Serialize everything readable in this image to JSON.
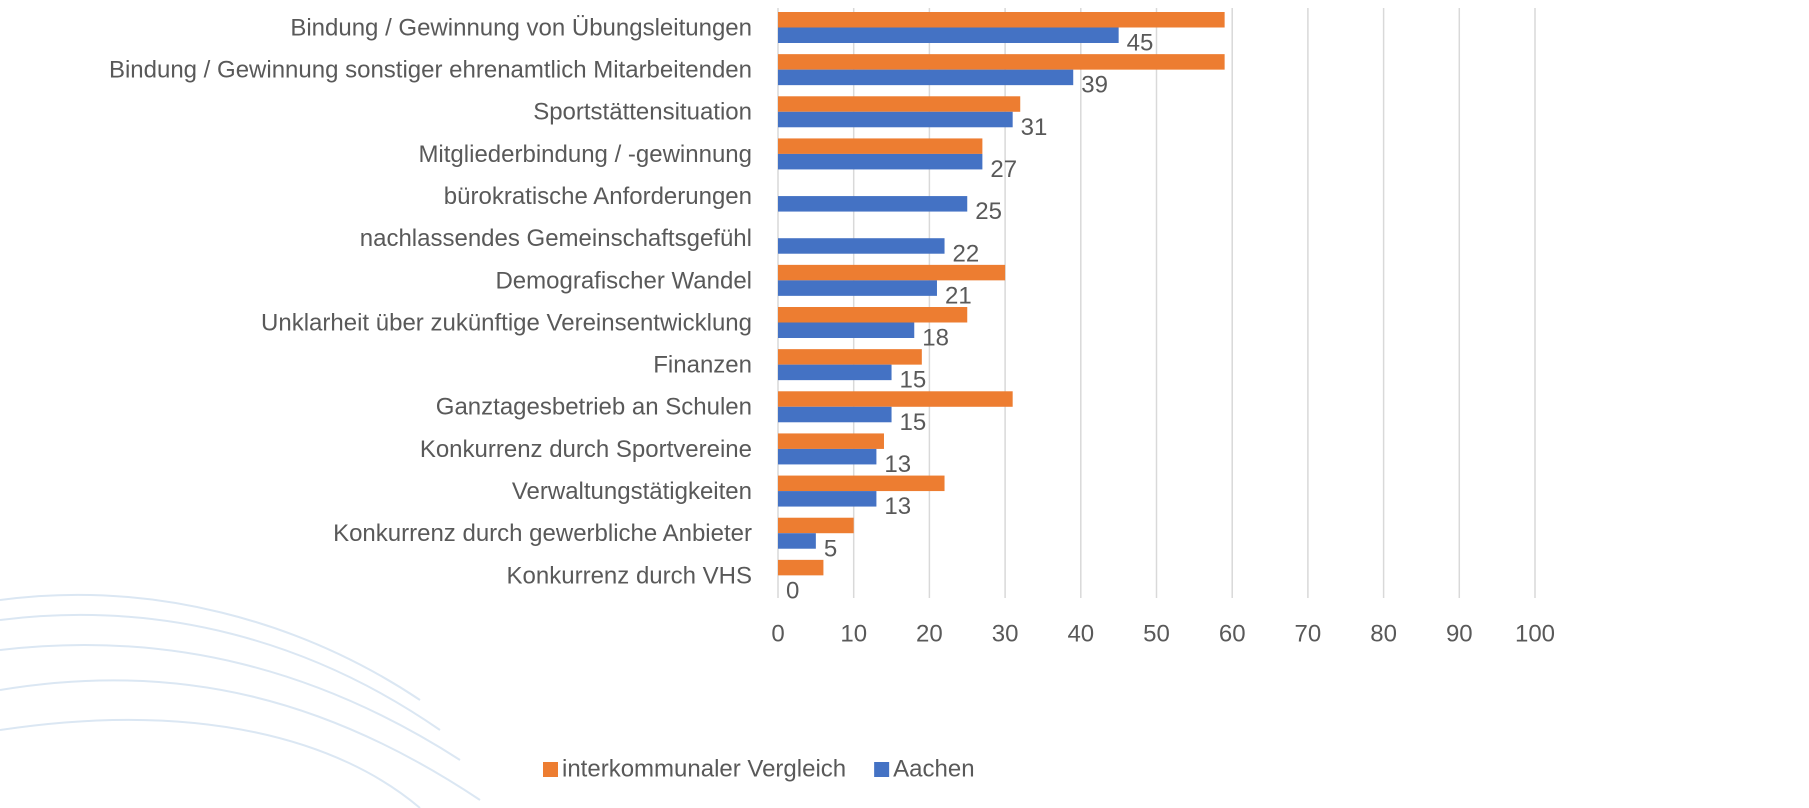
{
  "chart_data": {
    "type": "bar",
    "orientation": "horizontal",
    "categories": [
      "Bindung / Gewinnung von Übungsleitungen",
      "Bindung / Gewinnung sonstiger ehrenamtlich Mitarbeitenden",
      "Sportstättensituation",
      "Mitgliederbindung / -gewinnung",
      "bürokratische Anforderungen",
      "nachlassendes Gemeinschaftsgefühl",
      "Demografischer Wandel",
      "Unklarheit über zukünftige Vereinsentwicklung",
      "Finanzen",
      "Ganztagesbetrieb an Schulen",
      "Konkurrenz durch Sportvereine",
      "Verwaltungstätigkeiten",
      "Konkurrenz durch gewerbliche Anbieter",
      "Konkurrenz durch VHS"
    ],
    "series": [
      {
        "name": "interkommunaler Vergleich",
        "color": "#ed7d31",
        "values": [
          59,
          59,
          32,
          27,
          null,
          null,
          30,
          25,
          19,
          31,
          14,
          22,
          10,
          6
        ]
      },
      {
        "name": "Aachen",
        "color": "#4472c4",
        "values": [
          45,
          39,
          31,
          27,
          25,
          22,
          21,
          18,
          15,
          15,
          13,
          13,
          5,
          0
        ],
        "data_labels": true
      }
    ],
    "xlim": [
      0,
      100
    ],
    "xticks": [
      0,
      10,
      20,
      30,
      40,
      50,
      60,
      70,
      80,
      90,
      100
    ],
    "grid": true,
    "legend": "bottom"
  }
}
